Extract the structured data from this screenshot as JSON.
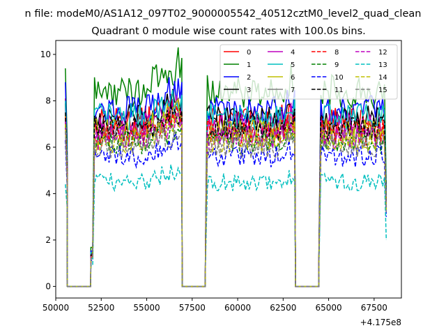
{
  "suptitle": "n file: modeM0/AS1A12_097T02_9000005542_40512cztM0_level2_quad_clean",
  "chart_data": {
    "type": "line",
    "title": "Quadrant 0 module wise count rates with 100.0s bins.",
    "xlabel": "",
    "ylabel": "",
    "x_offset_label": "+4.175e8",
    "xlim": [
      50000,
      69000
    ],
    "ylim": [
      -0.5,
      10.6
    ],
    "xticks": [
      50000,
      52500,
      55000,
      57500,
      60000,
      62500,
      65000,
      67500
    ],
    "xtick_labels": [
      "50000",
      "52500",
      "55000",
      "57500",
      "60000",
      "62500",
      "65000",
      "67500"
    ],
    "yticks": [
      0,
      2,
      4,
      6,
      8,
      10
    ],
    "ytick_labels": [
      "0",
      "2",
      "4",
      "6",
      "8",
      "10"
    ],
    "grid": false,
    "legend_position": "top-right",
    "legend_columns": 4,
    "segments": [
      {
        "x_start": 50530,
        "x_end": 51930,
        "gap_x_start": 50630,
        "gap_x_end": 51930
      },
      {
        "x_start": 56940,
        "x_end": 58230,
        "gap_x_start": 57030,
        "gap_x_end": 58230
      },
      {
        "x_start": 63170,
        "x_end": 64470,
        "gap_x_start": 63270,
        "gap_x_end": 64470
      }
    ],
    "active_ranges": [
      [
        50530,
        50630
      ],
      [
        51930,
        56940
      ],
      [
        58230,
        63170
      ],
      [
        64470,
        68170
      ]
    ],
    "series": [
      {
        "name": "0",
        "color": "#ff0000",
        "dash": "solid",
        "level": 7.1,
        "start": 8.1,
        "end": 3.8,
        "peak": 1.12
      },
      {
        "name": "1",
        "color": "#008000",
        "dash": "solid",
        "level": 8.4,
        "start": 9.4,
        "end": 4.2,
        "peak": 1.15
      },
      {
        "name": "2",
        "color": "#0000ff",
        "dash": "solid",
        "level": 7.6,
        "start": 8.8,
        "end": 3.9,
        "peak": 1.14
      },
      {
        "name": "3",
        "color": "#000000",
        "dash": "solid",
        "level": 7.2,
        "start": 7.9,
        "end": 3.7,
        "peak": 1.12
      },
      {
        "name": "4",
        "color": "#bf00bf",
        "dash": "solid",
        "level": 6.9,
        "start": 7.7,
        "end": 3.6,
        "peak": 1.12
      },
      {
        "name": "5",
        "color": "#00bfbf",
        "dash": "solid",
        "level": 7.3,
        "start": 8.0,
        "end": 3.8,
        "peak": 1.12
      },
      {
        "name": "6",
        "color": "#bfbf00",
        "dash": "solid",
        "level": 6.7,
        "start": 7.4,
        "end": 3.5,
        "peak": 1.12
      },
      {
        "name": "7",
        "color": "#808080",
        "dash": "solid",
        "level": 6.5,
        "start": 7.2,
        "end": 3.4,
        "peak": 1.12
      },
      {
        "name": "8",
        "color": "#ff0000",
        "dash": "dashed",
        "level": 6.6,
        "start": 7.3,
        "end": 3.4,
        "peak": 1.12
      },
      {
        "name": "9",
        "color": "#008000",
        "dash": "dashed",
        "level": 6.2,
        "start": 6.9,
        "end": 3.3,
        "peak": 1.12
      },
      {
        "name": "10",
        "color": "#0000ff",
        "dash": "dashed",
        "level": 5.6,
        "start": 6.3,
        "end": 3.0,
        "peak": 1.12
      },
      {
        "name": "11",
        "color": "#000000",
        "dash": "dashed",
        "level": 6.8,
        "start": 7.5,
        "end": 3.6,
        "peak": 1.12
      },
      {
        "name": "12",
        "color": "#bf00bf",
        "dash": "dashed",
        "level": 6.4,
        "start": 7.1,
        "end": 3.4,
        "peak": 1.12
      },
      {
        "name": "13",
        "color": "#00bfbf",
        "dash": "dashed",
        "level": 4.5,
        "start": 4.4,
        "end": 2.0,
        "peak": 1.12
      },
      {
        "name": "14",
        "color": "#bfbf00",
        "dash": "dashed",
        "level": 6.3,
        "start": 7.0,
        "end": 3.3,
        "peak": 1.12
      },
      {
        "name": "15",
        "color": "#808080",
        "dash": "dashed",
        "level": 6.0,
        "start": 6.7,
        "end": 3.2,
        "peak": 1.12
      }
    ]
  }
}
